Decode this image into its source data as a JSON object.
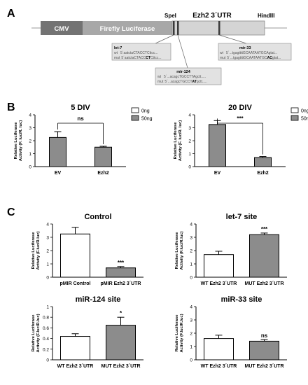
{
  "panels": {
    "a": "A",
    "b": "B",
    "c": "C"
  },
  "construct": {
    "segments": [
      "CMV",
      "Firefly Luciferase",
      "Ezh2 3´UTR"
    ],
    "sites": [
      "SpeI",
      "HindIII"
    ],
    "colors": {
      "cmv": "#737373",
      "luc": "#a8a8a8",
      "utr": "#d4d4d4",
      "box": "#e2e2e2"
    },
    "callouts": [
      {
        "title": "let-7",
        "wt_label": "wt",
        "wt_seq": "5´aatctaCTACCTCttcc...",
        "mut_label": "mut",
        "mut_pre": "5´aatctaCTACC",
        "mut_bold": "CT",
        "mut_post": "Cttcc..."
      },
      {
        "title": "mir-124",
        "wt_label": "wt",
        "wt_seq": "5´...acagcTGCCTTAgctt.....",
        "mut_label": "mut",
        "mut_pre": "5´...acagcTGCCT",
        "mut_bold": "AT",
        "mut_post": "gctt....."
      },
      {
        "title": "mir-33",
        "wt_label": "wt",
        "wt_seq": "5´...tgagttttGCAATAATGCAgtat...",
        "mut_label": "mut",
        "mut_pre": "5´...tgagttttGCAATAATGC",
        "mut_bold": "AC",
        "mut_post": "gtat..."
      }
    ]
  },
  "chart_data": [
    {
      "type": "bar",
      "title": "5 DIV",
      "ylabel": "Relative Luciferase Activity (F. luc/R. luc)",
      "categories": [
        "EV",
        "Ezh2"
      ],
      "ylim": [
        0,
        4
      ],
      "yticks": [
        0,
        1,
        2,
        3,
        4
      ],
      "series": [
        {
          "name": "50ng",
          "values": [
            2.25,
            1.5
          ],
          "errors": [
            0.45,
            0.07
          ]
        }
      ],
      "legend": [
        "0ng",
        "50ng"
      ],
      "legend_position": "top-right",
      "significance": "ns",
      "bar_color": "#8c8c8c"
    },
    {
      "type": "bar",
      "title": "20 DIV",
      "ylabel": "Relative Luciferase Activity (F. luc/R. luc)",
      "categories": [
        "EV",
        "Ezh2"
      ],
      "ylim": [
        0,
        4
      ],
      "yticks": [
        0,
        1,
        2,
        3,
        4
      ],
      "series": [
        {
          "name": "50ng",
          "values": [
            3.25,
            0.7
          ],
          "errors": [
            0.3,
            0.08
          ]
        }
      ],
      "legend": [
        "0ng",
        "50ng"
      ],
      "legend_position": "top-right",
      "significance": "***",
      "bar_color": "#8c8c8c"
    },
    {
      "type": "bar",
      "title": "Control",
      "ylabel": "Relative Luciferase Activity (F.luc/R.luc)",
      "categories": [
        "pMIR Control",
        "pMIR Ezh2 3´UTR"
      ],
      "ylim": [
        0,
        4
      ],
      "yticks": [
        0,
        1,
        2,
        3,
        4
      ],
      "values": [
        3.25,
        0.7
      ],
      "errors": [
        0.5,
        0.1
      ],
      "annotations": [
        "",
        "***"
      ],
      "bar_colors": [
        "#ffffff",
        "#8c8c8c"
      ]
    },
    {
      "type": "bar",
      "title": "let-7 site",
      "ylabel": "Relative Luciferase Activity (F.luc/R.luc)",
      "categories": [
        "WT Ezh2 3´UTR",
        "MUT Ezh2 3´UTR"
      ],
      "ylim": [
        0,
        4
      ],
      "yticks": [
        0,
        1,
        2,
        3,
        4
      ],
      "values": [
        1.7,
        3.2
      ],
      "errors": [
        0.25,
        0.12
      ],
      "annotations": [
        "",
        "***"
      ],
      "bar_colors": [
        "#ffffff",
        "#8c8c8c"
      ]
    },
    {
      "type": "bar",
      "title": "miR-124 site",
      "ylabel": "Relative Luciferase Activity (F.luc/R.luc)",
      "categories": [
        "WT Ezh2 3´UTR",
        "MUT Ezh2 3´UTR"
      ],
      "ylim": [
        0,
        1.0
      ],
      "yticks": [
        0,
        0.2,
        0.4,
        0.6,
        0.8,
        1.0
      ],
      "values": [
        0.44,
        0.65
      ],
      "errors": [
        0.05,
        0.15
      ],
      "annotations": [
        "",
        "*"
      ],
      "bar_colors": [
        "#ffffff",
        "#8c8c8c"
      ]
    },
    {
      "type": "bar",
      "title": "miR-33 site",
      "ylabel": "Relative Luciferase Activity (F.luc/R.luc)",
      "categories": [
        "WT Ezh2 3´UTR",
        "MUT Ezh2 3´UTR"
      ],
      "ylim": [
        0,
        4
      ],
      "yticks": [
        0,
        1,
        2,
        3,
        4
      ],
      "values": [
        1.6,
        1.4
      ],
      "errors": [
        0.25,
        0.12
      ],
      "annotations": [
        "",
        "ns"
      ],
      "bar_colors": [
        "#ffffff",
        "#8c8c8c"
      ]
    }
  ]
}
